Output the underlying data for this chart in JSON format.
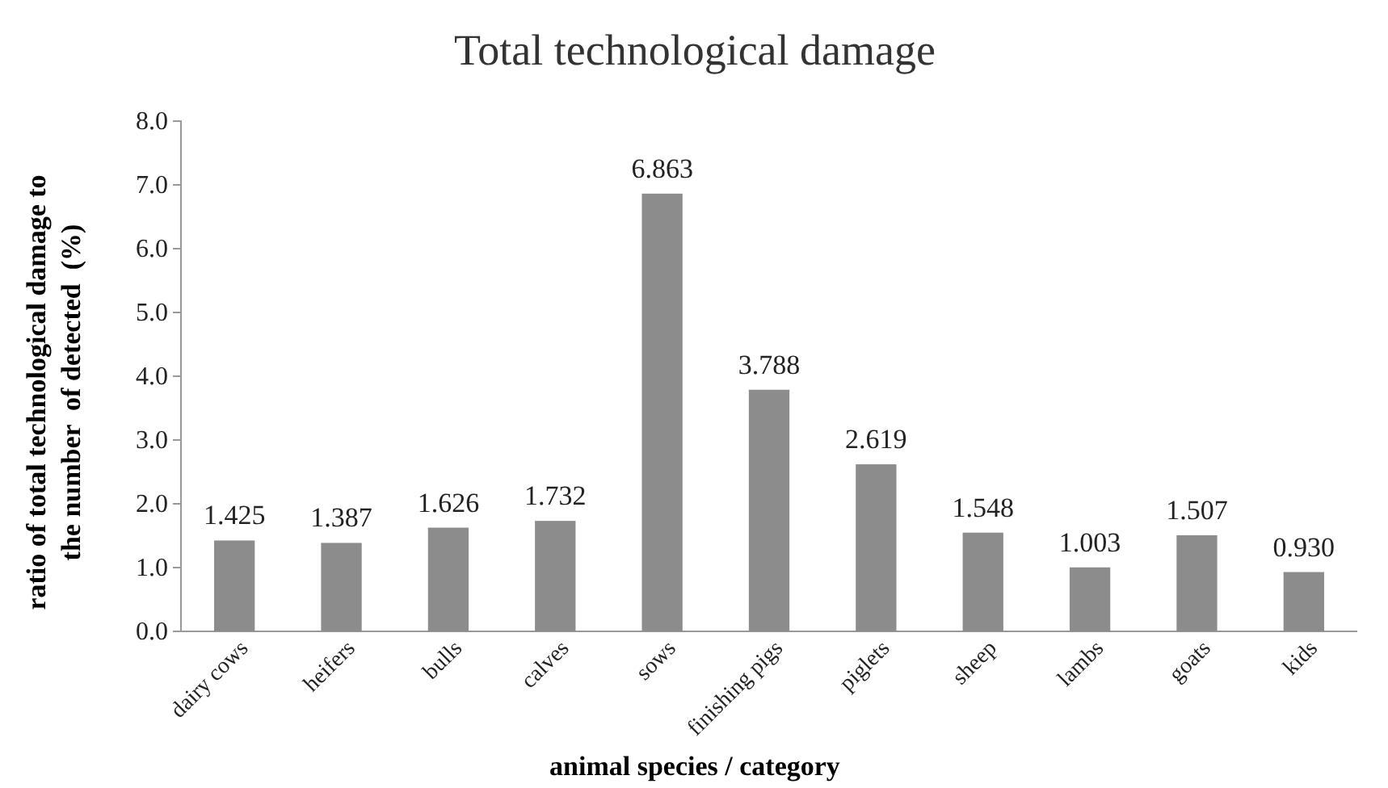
{
  "chart_data": {
    "type": "bar",
    "title": "Total technological damage",
    "xlabel": "animal species / category",
    "ylabel": "ratio of total technological damage to the number  of detected  (%)",
    "categories": [
      "dairy cows",
      "heifers",
      "bulls",
      "calves",
      "sows",
      "finishing pigs",
      "piglets",
      "sheep",
      "lambs",
      "goats",
      "kids"
    ],
    "values": [
      1.425,
      1.387,
      1.626,
      1.732,
      6.863,
      3.788,
      2.619,
      1.548,
      1.003,
      1.507,
      0.93
    ],
    "value_labels": [
      "1.425",
      "1.387",
      "1.626",
      "1.732",
      "6.863",
      "3.788",
      "2.619",
      "1.548",
      "1.003",
      "1.507",
      "0.930"
    ],
    "color": "#8c8c8c",
    "ylim": [
      0,
      8
    ],
    "yticks": [
      {
        "value": 0,
        "label": "0.0"
      },
      {
        "value": 1,
        "label": "1.0"
      },
      {
        "value": 2,
        "label": "2.0"
      },
      {
        "value": 3,
        "label": "3.0"
      },
      {
        "value": 4,
        "label": "4.0"
      },
      {
        "value": 5,
        "label": "5.0"
      },
      {
        "value": 6,
        "label": "6.0"
      },
      {
        "value": 7,
        "label": "7.0"
      },
      {
        "value": 8,
        "label": "8.0"
      }
    ],
    "grid": false
  }
}
